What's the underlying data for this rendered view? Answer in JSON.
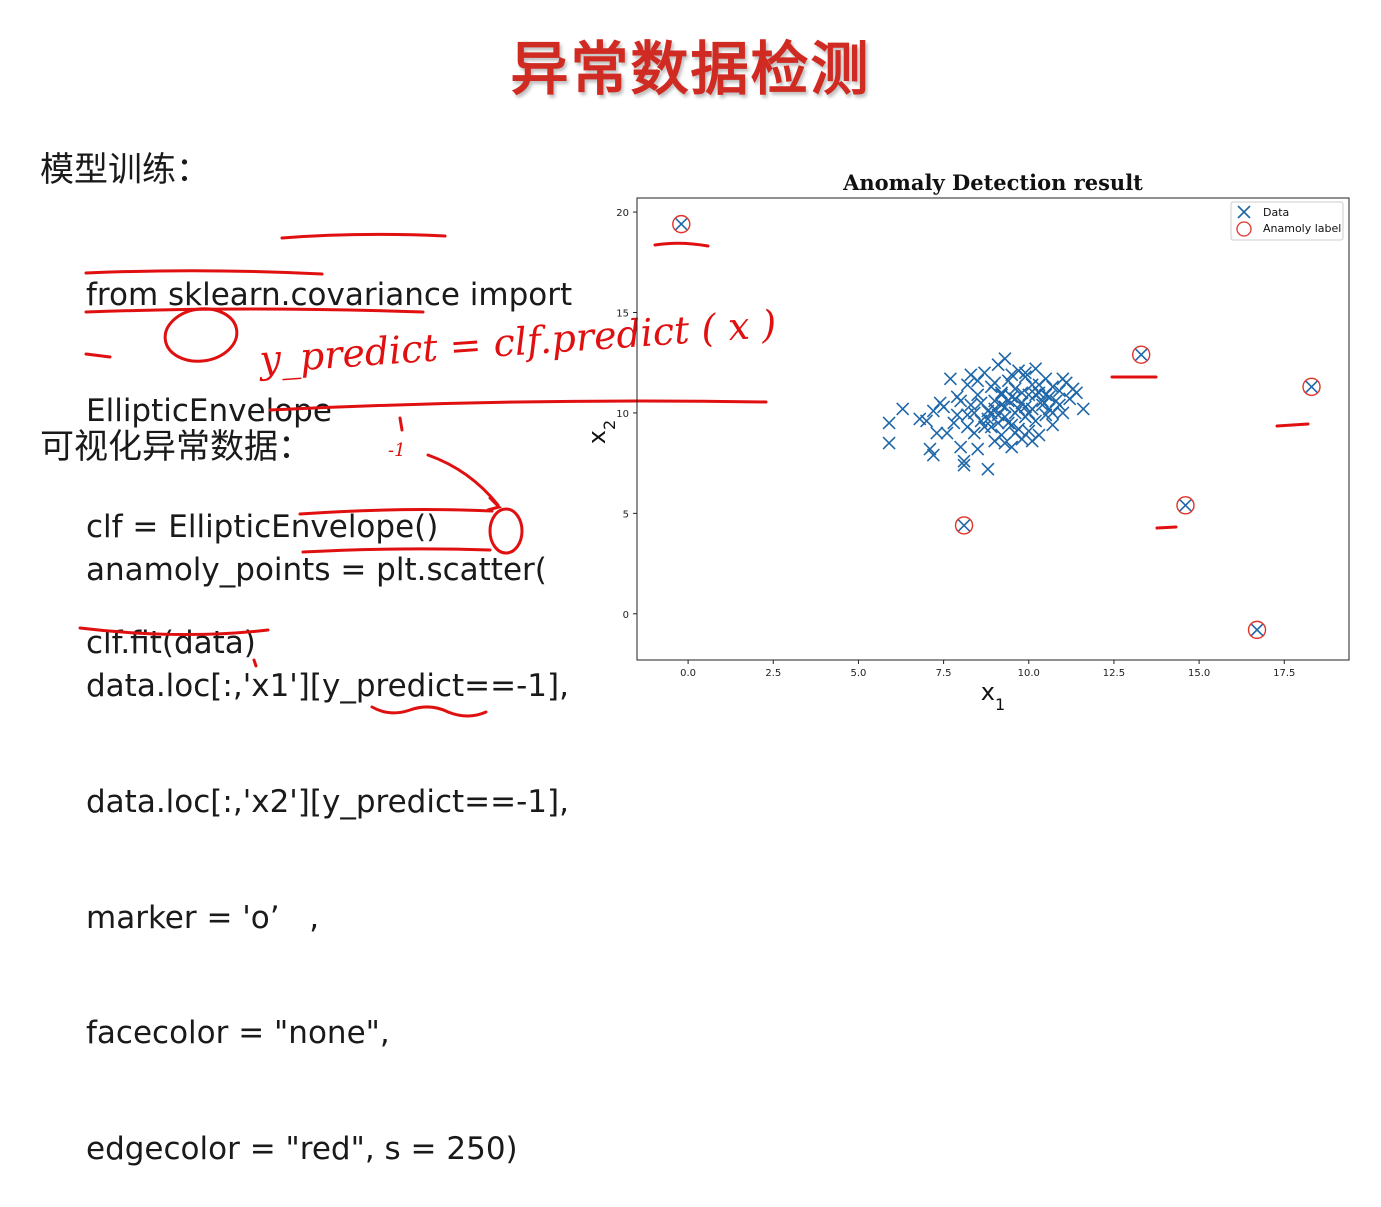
{
  "slide": {
    "title": "异常数据检测",
    "section1_heading": "模型训练：",
    "code1": [
      "from sklearn.covariance import",
      "EllipticEnvelope",
      "clf = EllipticEnvelope()",
      "clf.fit(data)"
    ],
    "section2_heading": "可视化异常数据：",
    "code2": [
      "anamoly_points = plt.scatter(",
      "data.loc[:,'x1'][y_predict==-1],",
      "data.loc[:,'x2'][y_predict==-1],",
      "marker = 'o’   ,",
      "facecolor = \"none\",",
      "edgecolor = \"red\", s = 250)"
    ],
    "handwritten_note": "y_predict = clf.predict ( x )",
    "handwritten_minus_one": "-1"
  },
  "colors": {
    "title": "#d02b22",
    "data_marker": "#1f67a8",
    "anomaly_circle": "#e0342b",
    "annotation": "#e01010"
  },
  "chart_data": {
    "type": "scatter",
    "title": "Anomaly Detection result",
    "xlabel": "x1",
    "ylabel": "x2",
    "xlim": [
      -1.5,
      19.4
    ],
    "ylim": [
      -2.3,
      20.7
    ],
    "xticks": [
      0.0,
      2.5,
      5.0,
      7.5,
      10.0,
      12.5,
      15.0,
      17.5
    ],
    "xtick_labels": [
      "0.0",
      "2.5",
      "5.0",
      "7.5",
      "10.0",
      "12.5",
      "15.0",
      "17.5"
    ],
    "yticks": [
      0,
      5,
      10,
      15,
      20
    ],
    "ytick_labels": [
      "0",
      "5",
      "10",
      "15",
      "20"
    ],
    "legend": {
      "position": "top-right",
      "entries": [
        "Data",
        "Anamoly label"
      ]
    },
    "series": [
      {
        "name": "Data",
        "marker": "x",
        "points": [
          [
            5.9,
            9.5
          ],
          [
            5.9,
            8.5
          ],
          [
            6.3,
            10.2
          ],
          [
            7.0,
            9.6
          ],
          [
            7.2,
            10.1
          ],
          [
            7.3,
            9.0
          ],
          [
            7.1,
            8.2
          ],
          [
            7.2,
            7.9
          ],
          [
            7.5,
            10.3
          ],
          [
            7.7,
            11.7
          ],
          [
            7.8,
            9.5
          ],
          [
            7.9,
            10.8
          ],
          [
            8.0,
            8.3
          ],
          [
            8.1,
            7.6
          ],
          [
            8.1,
            7.4
          ],
          [
            8.2,
            9.9
          ],
          [
            8.2,
            11.4
          ],
          [
            8.3,
            10.4
          ],
          [
            8.3,
            11.9
          ],
          [
            8.4,
            9.0
          ],
          [
            8.5,
            10.9
          ],
          [
            8.5,
            8.2
          ],
          [
            8.6,
            9.6
          ],
          [
            8.7,
            12.0
          ],
          [
            8.8,
            10.1
          ],
          [
            8.8,
            7.2
          ],
          [
            8.9,
            9.3
          ],
          [
            8.9,
            11.3
          ],
          [
            9.0,
            10.6
          ],
          [
            9.0,
            8.6
          ],
          [
            9.1,
            9.9
          ],
          [
            9.1,
            12.4
          ],
          [
            9.2,
            11.0
          ],
          [
            9.2,
            8.9
          ],
          [
            9.3,
            10.3
          ],
          [
            9.3,
            12.7
          ],
          [
            9.4,
            9.5
          ],
          [
            9.4,
            11.6
          ],
          [
            9.5,
            10.8
          ],
          [
            9.5,
            8.3
          ],
          [
            9.6,
            10.0
          ],
          [
            9.6,
            11.2
          ],
          [
            9.7,
            9.2
          ],
          [
            9.7,
            12.1
          ],
          [
            9.8,
            10.5
          ],
          [
            9.8,
            8.7
          ],
          [
            9.9,
            11.8
          ],
          [
            9.9,
            9.8
          ],
          [
            10.0,
            10.9
          ],
          [
            10.0,
            9.1
          ],
          [
            10.1,
            11.4
          ],
          [
            10.1,
            10.2
          ],
          [
            10.2,
            12.2
          ],
          [
            10.2,
            9.6
          ],
          [
            10.3,
            11.0
          ],
          [
            10.3,
            8.9
          ],
          [
            10.4,
            10.4
          ],
          [
            10.5,
            11.7
          ],
          [
            10.5,
            9.9
          ],
          [
            10.6,
            10.8
          ],
          [
            10.7,
            11.3
          ],
          [
            10.7,
            9.4
          ],
          [
            10.8,
            10.6
          ],
          [
            10.9,
            11.1
          ],
          [
            11.0,
            10.0
          ],
          [
            11.1,
            11.5
          ],
          [
            11.2,
            10.7
          ],
          [
            11.3,
            11.2
          ],
          [
            11.6,
            10.2
          ],
          [
            8.6,
            10.5
          ],
          [
            9.0,
            10.2
          ],
          [
            9.3,
            9.8
          ],
          [
            9.6,
            10.7
          ],
          [
            9.9,
            10.3
          ],
          [
            10.4,
            10.6
          ],
          [
            9.2,
            10.9
          ],
          [
            8.9,
            10.0
          ],
          [
            9.5,
            9.4
          ],
          [
            10.0,
            10.0
          ],
          [
            9.7,
            10.2
          ],
          [
            9.4,
            10.6
          ],
          [
            8.7,
            9.3
          ],
          [
            10.2,
            10.9
          ],
          [
            9.1,
            9.5
          ],
          [
            9.8,
            11.0
          ],
          [
            8.4,
            10.0
          ],
          [
            10.6,
            10.2
          ],
          [
            9.0,
            11.5
          ],
          [
            9.6,
            9.0
          ],
          [
            10.3,
            11.4
          ],
          [
            8.2,
            9.3
          ],
          [
            7.6,
            9.0
          ],
          [
            7.4,
            10.5
          ],
          [
            11.4,
            11.0
          ],
          [
            10.9,
            10.4
          ],
          [
            8.0,
            10.6
          ],
          [
            9.3,
            8.5
          ],
          [
            10.1,
            8.6
          ],
          [
            8.5,
            11.6
          ],
          [
            9.9,
            12.0
          ],
          [
            10.5,
            10.9
          ],
          [
            9.2,
            10.4
          ],
          [
            6.8,
            9.7
          ],
          [
            7.9,
            9.9
          ],
          [
            8.8,
            9.7
          ],
          [
            10.7,
            10.0
          ],
          [
            11.0,
            11.7
          ],
          [
            9.5,
            11.9
          ],
          [
            13.3,
            12.9
          ],
          [
            18.3,
            11.3
          ],
          [
            14.6,
            5.4
          ],
          [
            8.1,
            4.4
          ],
          [
            16.7,
            -0.8
          ],
          [
            -0.2,
            19.4
          ]
        ]
      },
      {
        "name": "Anamoly label",
        "marker": "o",
        "points": [
          [
            -0.2,
            19.4
          ],
          [
            13.3,
            12.9
          ],
          [
            18.3,
            11.3
          ],
          [
            14.6,
            5.4
          ],
          [
            8.1,
            4.4
          ],
          [
            16.7,
            -0.8
          ]
        ]
      }
    ],
    "grid": false
  }
}
